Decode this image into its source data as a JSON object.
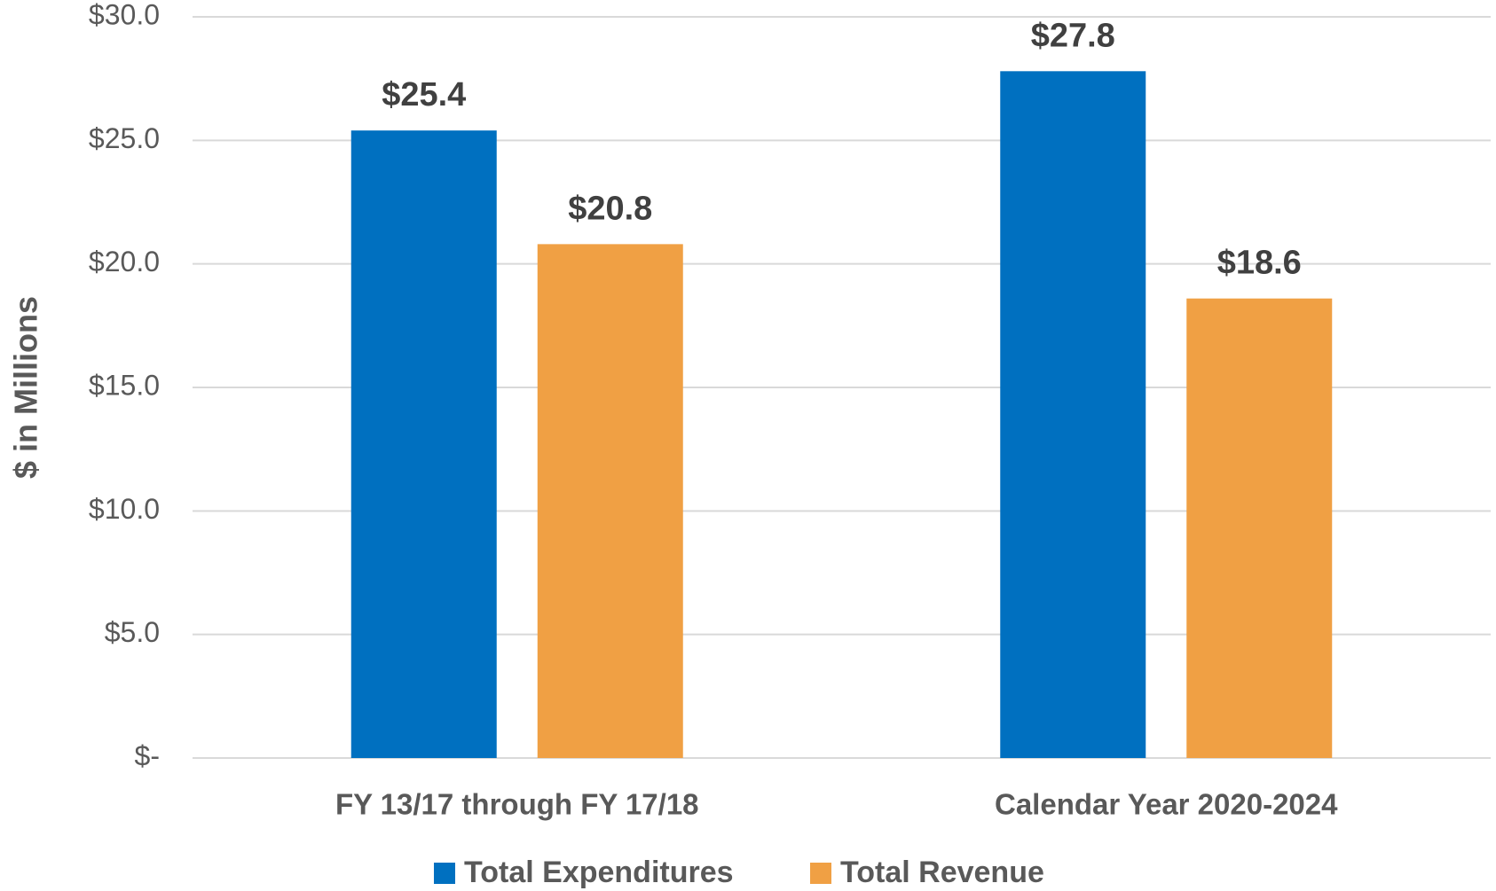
{
  "chart_data": {
    "type": "bar",
    "categories": [
      "FY 13/17 through FY 17/18",
      "Calendar Year 2020-2024"
    ],
    "series": [
      {
        "name": "Total Expenditures",
        "color": "#0070c0",
        "values": [
          25.4,
          27.8
        ],
        "value_labels": [
          "$25.4",
          "$27.8"
        ]
      },
      {
        "name": "Total Revenue",
        "color": "#f0a044",
        "values": [
          20.8,
          18.6
        ],
        "value_labels": [
          "$20.8",
          "$18.6"
        ]
      }
    ],
    "ylabel": "$ in Millions",
    "ylim": [
      0,
      30
    ],
    "yticks": [
      {
        "value": 0,
        "label": "$-"
      },
      {
        "value": 5,
        "label": "$5.0"
      },
      {
        "value": 10,
        "label": "$10.0"
      },
      {
        "value": 15,
        "label": "$15.0"
      },
      {
        "value": 20,
        "label": "$20.0"
      },
      {
        "value": 25,
        "label": "$25.0"
      },
      {
        "value": 30,
        "label": "$30.0"
      }
    ],
    "grid": true,
    "legend": "bottom"
  }
}
